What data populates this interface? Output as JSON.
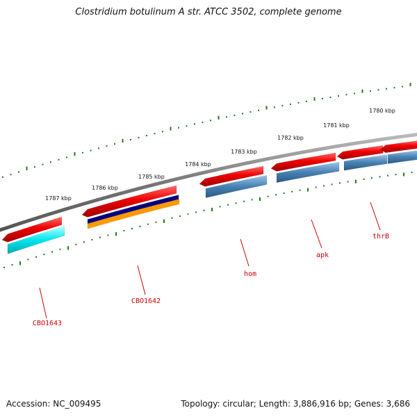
{
  "title": "Clostridium botulinum A str. ATCC 3502, complete genome",
  "accession": "Accession: NC_009495",
  "summary": "Topology: circular; Length: 3,886,916 bp; Genes: 3,686",
  "ruler_labels": [
    "1780 kbp",
    "1781 kbp",
    "1782 kbp",
    "1783 kbp",
    "1784 kbp",
    "1785 kbp",
    "1786 kbp",
    "1787 kbp"
  ],
  "genes": [
    "CBO1643",
    "CBO1642",
    "hom",
    "apk",
    "thrB"
  ],
  "colors": {
    "backbone": "#808080",
    "forward_gene": "#ee0000",
    "reverse_cds": "#4682b4",
    "cyan_feature": "#00e5ee",
    "navy_feature": "#000080",
    "orange_feature": "#ff9900",
    "tick": "#1f7a1f",
    "label": "#cc0000"
  }
}
